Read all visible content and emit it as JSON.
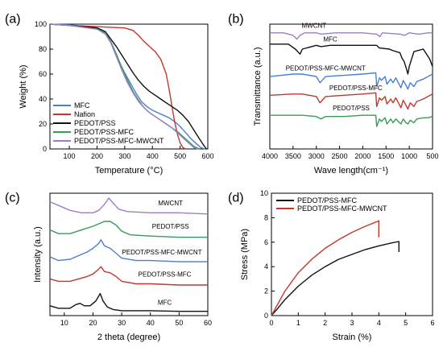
{
  "chart_data": [
    {
      "panel": "(a)",
      "type": "line",
      "xlabel": "Temperature (°C)",
      "ylabel": "Weight (%)",
      "xlim": [
        30,
        600
      ],
      "ylim": [
        0,
        100
      ],
      "xticks": [
        100,
        200,
        300,
        400,
        500,
        600
      ],
      "yticks": [
        0,
        20,
        40,
        60,
        80,
        100
      ],
      "legend_position": "bottom-left",
      "series": [
        {
          "name": "MFC",
          "color": "#4a7fd0",
          "x": [
            30,
            100,
            200,
            220,
            240,
            260,
            280,
            300,
            320,
            340,
            360,
            380,
            400,
            420,
            440,
            460,
            480,
            500,
            520,
            540,
            560,
            575,
            590
          ],
          "y": [
            100,
            99.5,
            97,
            95,
            90,
            80,
            70,
            61,
            53,
            45,
            38,
            34,
            31,
            29,
            27,
            25,
            22,
            18,
            13,
            8,
            4,
            1,
            0
          ]
        },
        {
          "name": "Nafion",
          "color": "#c0392b",
          "x": [
            30,
            100,
            200,
            250,
            300,
            330,
            350,
            370,
            390,
            410,
            430,
            450,
            460,
            470,
            480,
            490,
            500,
            510,
            520
          ],
          "y": [
            100,
            99,
            98,
            97.5,
            97,
            95,
            91,
            86,
            82,
            78,
            72,
            60,
            48,
            35,
            22,
            12,
            5,
            1,
            0
          ]
        },
        {
          "name": "PEDOT/PSS",
          "color": "#111111",
          "x": [
            30,
            100,
            200,
            230,
            250,
            270,
            290,
            310,
            330,
            350,
            370,
            390,
            410,
            430,
            450,
            470,
            490,
            510,
            530,
            550,
            570,
            585,
            595
          ],
          "y": [
            100,
            99,
            97,
            94,
            88,
            82,
            75,
            68,
            61,
            55,
            50,
            46,
            43,
            40,
            37,
            34,
            31,
            27,
            22,
            15,
            8,
            3,
            0
          ]
        },
        {
          "name": "PEDOT/PSS-MFC",
          "color": "#3a9a5a",
          "x": [
            30,
            100,
            200,
            230,
            250,
            270,
            290,
            310,
            330,
            350,
            370,
            390,
            410,
            430,
            450,
            470,
            490,
            510,
            530,
            550,
            570
          ],
          "y": [
            100,
            99,
            96,
            93,
            86,
            76,
            65,
            55,
            46,
            39,
            33,
            29,
            26,
            23,
            20,
            17,
            14,
            10,
            6,
            2,
            0
          ]
        },
        {
          "name": "PEDOT/PSS-MFC-MWCNT",
          "color": "#9a7fc8",
          "x": [
            30,
            100,
            200,
            230,
            250,
            270,
            290,
            310,
            330,
            350,
            370,
            390,
            410,
            430,
            450,
            470,
            490,
            510,
            530,
            550,
            565
          ],
          "y": [
            100,
            99,
            96,
            92,
            85,
            74,
            63,
            53,
            45,
            38,
            33,
            29,
            26,
            23,
            20,
            17,
            13,
            9,
            5,
            1,
            0
          ]
        }
      ]
    },
    {
      "panel": "(b)",
      "type": "line",
      "xlabel": "Wave length(cm⁻¹)",
      "ylabel": "Transmittance (a.u.)",
      "xlim": [
        4000,
        500
      ],
      "xticks": [
        4000,
        3500,
        3000,
        2500,
        2000,
        1500,
        1000,
        500
      ],
      "series": [
        {
          "name": "MWCNT",
          "color": "#9a7fc8",
          "x": [
            4000,
            3700,
            3500,
            3420,
            3350,
            3250,
            3000,
            2900,
            2600,
            2000,
            1700,
            1630,
            1580,
            1200,
            1100,
            1000,
            800,
            600,
            500
          ],
          "y": [
            0.93,
            0.93,
            0.91,
            0.88,
            0.91,
            0.93,
            0.93,
            0.92,
            0.93,
            0.93,
            0.92,
            0.9,
            0.93,
            0.92,
            0.91,
            0.93,
            0.92,
            0.93,
            0.93
          ]
        },
        {
          "name": "MFC",
          "color": "#111111",
          "x": [
            4000,
            3600,
            3450,
            3350,
            3300,
            3000,
            2900,
            2700,
            1700,
            1650,
            1430,
            1370,
            1200,
            1160,
            1110,
            1060,
            1030,
            1000,
            900,
            700,
            560,
            500
          ],
          "y": [
            0.84,
            0.84,
            0.8,
            0.76,
            0.8,
            0.83,
            0.82,
            0.83,
            0.83,
            0.81,
            0.8,
            0.79,
            0.77,
            0.73,
            0.7,
            0.64,
            0.6,
            0.66,
            0.78,
            0.8,
            0.72,
            0.66
          ]
        },
        {
          "name": "PEDOT/PSS-MFC-MWCNT",
          "color": "#4a7fd0",
          "x": [
            4000,
            3500,
            3300,
            3000,
            2920,
            2850,
            2800,
            2400,
            2000,
            1720,
            1700,
            1640,
            1600,
            1520,
            1480,
            1400,
            1350,
            1290,
            1180,
            1130,
            1070,
            1030,
            980,
            900,
            840,
            700,
            600,
            500
          ],
          "y": [
            0.58,
            0.6,
            0.6,
            0.58,
            0.53,
            0.56,
            0.58,
            0.59,
            0.6,
            0.61,
            0.5,
            0.57,
            0.55,
            0.58,
            0.52,
            0.56,
            0.53,
            0.57,
            0.49,
            0.55,
            0.51,
            0.48,
            0.53,
            0.5,
            0.54,
            0.56,
            0.58,
            0.6
          ]
        },
        {
          "name": "PEDOT/PSS-MFC",
          "color": "#c0392b",
          "x": [
            4000,
            3500,
            3300,
            3000,
            2920,
            2850,
            2800,
            2400,
            2000,
            1720,
            1700,
            1640,
            1600,
            1520,
            1480,
            1400,
            1350,
            1290,
            1180,
            1130,
            1070,
            1030,
            980,
            900,
            840,
            700,
            600,
            500
          ],
          "y": [
            0.43,
            0.44,
            0.44,
            0.42,
            0.37,
            0.4,
            0.42,
            0.43,
            0.44,
            0.45,
            0.34,
            0.41,
            0.39,
            0.42,
            0.36,
            0.4,
            0.37,
            0.41,
            0.33,
            0.39,
            0.35,
            0.32,
            0.37,
            0.34,
            0.38,
            0.4,
            0.42,
            0.44
          ]
        },
        {
          "name": "PEDOT/PSS",
          "color": "#3a9a5a",
          "x": [
            4000,
            3500,
            3300,
            3000,
            2900,
            2800,
            2400,
            2000,
            1720,
            1700,
            1640,
            1600,
            1520,
            1480,
            1400,
            1350,
            1290,
            1180,
            1130,
            1070,
            1030,
            980,
            900,
            840,
            700,
            600,
            500
          ],
          "y": [
            0.27,
            0.27,
            0.27,
            0.26,
            0.24,
            0.26,
            0.26,
            0.27,
            0.27,
            0.18,
            0.24,
            0.22,
            0.25,
            0.2,
            0.24,
            0.21,
            0.24,
            0.2,
            0.24,
            0.21,
            0.2,
            0.23,
            0.21,
            0.24,
            0.25,
            0.25,
            0.26
          ]
        }
      ]
    },
    {
      "panel": "(c)",
      "type": "line",
      "xlabel": "2 theta (degree)",
      "ylabel": "Intensity (a.u.)",
      "xlim": [
        5,
        60
      ],
      "xticks": [
        10,
        20,
        30,
        40,
        50,
        60
      ],
      "series": [
        {
          "name": "MWCNT",
          "color": "#9a7fc8",
          "x": [
            5,
            8,
            12,
            16,
            20,
            22,
            24,
            25.5,
            27,
            29,
            32,
            40,
            50,
            60
          ],
          "y": [
            0.93,
            0.9,
            0.86,
            0.84,
            0.84,
            0.86,
            0.91,
            0.96,
            0.92,
            0.87,
            0.85,
            0.84,
            0.84,
            0.83
          ]
        },
        {
          "name": "PEDOT/PSS",
          "color": "#3a9a5a",
          "x": [
            5,
            8,
            12,
            16,
            20,
            22,
            24,
            26,
            28,
            30,
            33,
            40,
            50,
            60
          ],
          "y": [
            0.7,
            0.67,
            0.67,
            0.7,
            0.73,
            0.75,
            0.77,
            0.77,
            0.74,
            0.69,
            0.66,
            0.65,
            0.64,
            0.64
          ]
        },
        {
          "name": "PEDOT/PSS-MFC-MWCNT",
          "color": "#4a7fd0",
          "x": [
            5,
            8,
            12,
            15,
            18,
            20,
            22,
            22.8,
            24,
            26,
            28,
            30,
            35,
            40,
            50,
            60
          ],
          "y": [
            0.48,
            0.45,
            0.46,
            0.49,
            0.52,
            0.55,
            0.59,
            0.62,
            0.57,
            0.55,
            0.51,
            0.47,
            0.45,
            0.45,
            0.44,
            0.44
          ]
        },
        {
          "name": "PEDOT/PSS-MFC",
          "color": "#c0392b",
          "x": [
            5,
            8,
            12,
            15,
            18,
            20,
            22,
            22.8,
            24,
            26,
            28,
            30,
            35,
            40,
            50,
            60
          ],
          "y": [
            0.3,
            0.28,
            0.28,
            0.3,
            0.32,
            0.34,
            0.38,
            0.4,
            0.36,
            0.35,
            0.32,
            0.28,
            0.26,
            0.26,
            0.25,
            0.25
          ]
        },
        {
          "name": "MFC",
          "color": "#111111",
          "x": [
            5,
            8,
            12,
            14,
            15.5,
            17,
            19,
            21,
            22.5,
            23.5,
            25,
            27,
            30,
            40,
            50,
            60
          ],
          "y": [
            0.08,
            0.06,
            0.06,
            0.09,
            0.1,
            0.08,
            0.08,
            0.12,
            0.18,
            0.12,
            0.07,
            0.05,
            0.04,
            0.04,
            0.035,
            0.035
          ]
        }
      ]
    },
    {
      "panel": "(d)",
      "type": "line",
      "xlabel": "Strain (%)",
      "ylabel": "Stress (MPa)",
      "xlim": [
        0,
        6
      ],
      "ylim": [
        0,
        10
      ],
      "xticks": [
        0,
        1,
        2,
        3,
        4,
        5,
        6
      ],
      "yticks": [
        0,
        2,
        4,
        6,
        8,
        10
      ],
      "legend_position": "top-left",
      "series": [
        {
          "name": "PEDOT/PSS-MFC",
          "color": "#111111",
          "x": [
            0,
            0.2,
            0.5,
            1.0,
            1.5,
            2.0,
            2.5,
            3.0,
            3.5,
            4.0,
            4.5,
            4.75,
            4.75
          ],
          "y": [
            0,
            0.5,
            1.3,
            2.4,
            3.3,
            4.0,
            4.6,
            5.0,
            5.4,
            5.7,
            5.95,
            6.05,
            5.2
          ]
        },
        {
          "name": "PEDOT/PSS-MFC-MWCNT",
          "color": "#c0392b",
          "x": [
            0,
            0.2,
            0.5,
            1.0,
            1.5,
            2.0,
            2.5,
            3.0,
            3.5,
            3.9,
            4.0,
            4.0
          ],
          "y": [
            0,
            0.8,
            2.0,
            3.5,
            4.6,
            5.5,
            6.2,
            6.8,
            7.3,
            7.65,
            7.75,
            6.4
          ]
        }
      ]
    }
  ]
}
